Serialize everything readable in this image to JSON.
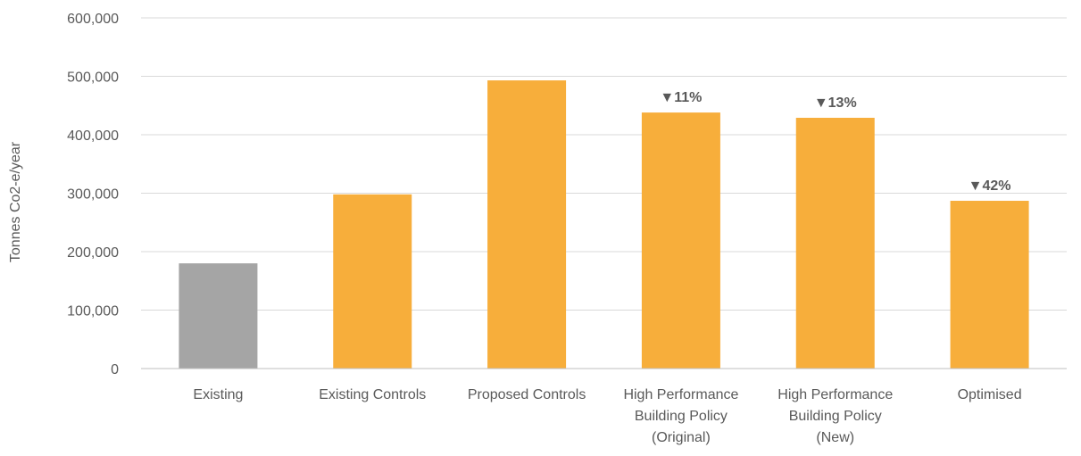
{
  "chart_data": {
    "type": "bar",
    "title": "",
    "xlabel": "",
    "ylabel": "Tonnes Co2-e/year",
    "ylim": [
      0,
      600000
    ],
    "yticks": [
      0,
      100000,
      200000,
      300000,
      400000,
      500000,
      600000
    ],
    "ytick_labels": [
      "0",
      "100,000",
      "200,000",
      "300,000",
      "400,000",
      "500,000",
      "600,000"
    ],
    "grid": true,
    "legend": "none",
    "categories": [
      [
        "Existing"
      ],
      [
        "Existing Controls"
      ],
      [
        "Proposed Controls"
      ],
      [
        "High Performance",
        "Building Policy",
        "(Original)"
      ],
      [
        "High Performance",
        "Building Policy",
        "(New)"
      ],
      [
        "Optimised"
      ]
    ],
    "values": [
      180000,
      298000,
      493000,
      438000,
      429000,
      287000
    ],
    "bar_colors": [
      "#a5a5a5",
      "#f7ae3b",
      "#f7ae3b",
      "#f7ae3b",
      "#f7ae3b",
      "#f7ae3b"
    ],
    "annotations": [
      "",
      "",
      "",
      "▼11%",
      "▼13%",
      "▼42%"
    ]
  }
}
